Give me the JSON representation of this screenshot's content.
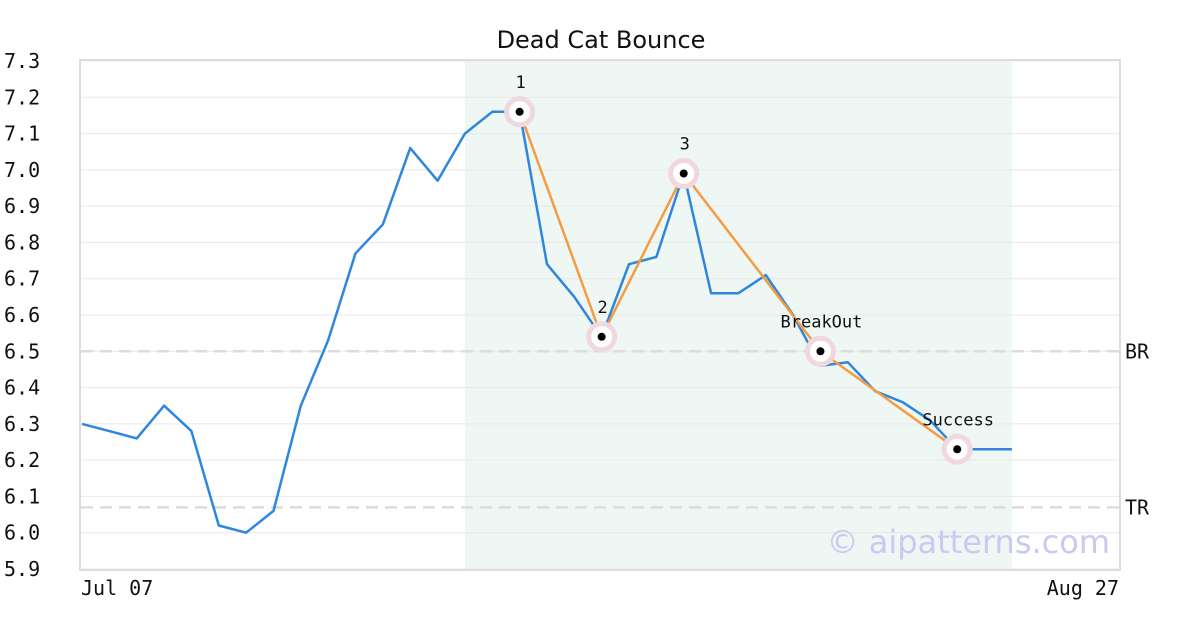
{
  "chart_data": {
    "type": "line",
    "title": "Dead Cat Bounce",
    "ylim": [
      5.9,
      7.3
    ],
    "yticks": [
      "5.9",
      "6.0",
      "6.1",
      "6.2",
      "6.3",
      "6.4",
      "6.5",
      "6.6",
      "6.7",
      "6.8",
      "6.9",
      "7.0",
      "7.1",
      "7.2",
      "7.3"
    ],
    "xtick_labels": [
      "Jul 07",
      "Aug 27"
    ],
    "grid": true,
    "series": [
      {
        "color": "#2e86de",
        "values": [
          6.3,
          6.28,
          6.26,
          6.35,
          6.28,
          6.02,
          6.0,
          6.06,
          6.35,
          6.53,
          6.77,
          6.85,
          7.06,
          6.97,
          7.1,
          7.16,
          7.16,
          6.74,
          6.65,
          6.54,
          6.74,
          6.76,
          6.99,
          6.66,
          6.66,
          6.71,
          6.6,
          6.46,
          6.47,
          6.39,
          6.36,
          6.31,
          6.23,
          6.23,
          6.23
        ]
      }
    ],
    "pattern": {
      "name": "Dead Cat Bounce",
      "color": "#f59c42",
      "highlight_range": [
        14,
        34
      ],
      "highlight_color": "#eef7f3",
      "points": [
        {
          "index": 16,
          "value": 7.16,
          "label": "1"
        },
        {
          "index": 19,
          "value": 6.54,
          "label": "2"
        },
        {
          "index": 22,
          "value": 6.99,
          "label": "3"
        },
        {
          "index": 27,
          "value": 6.5,
          "label": "BreakOut"
        },
        {
          "index": 32,
          "value": 6.23,
          "label": "Success"
        }
      ]
    },
    "reference_lines": [
      {
        "value": 6.5,
        "label": "BR"
      },
      {
        "value": 6.07,
        "label": "TR"
      }
    ],
    "watermark": "© aipatterns.com"
  }
}
